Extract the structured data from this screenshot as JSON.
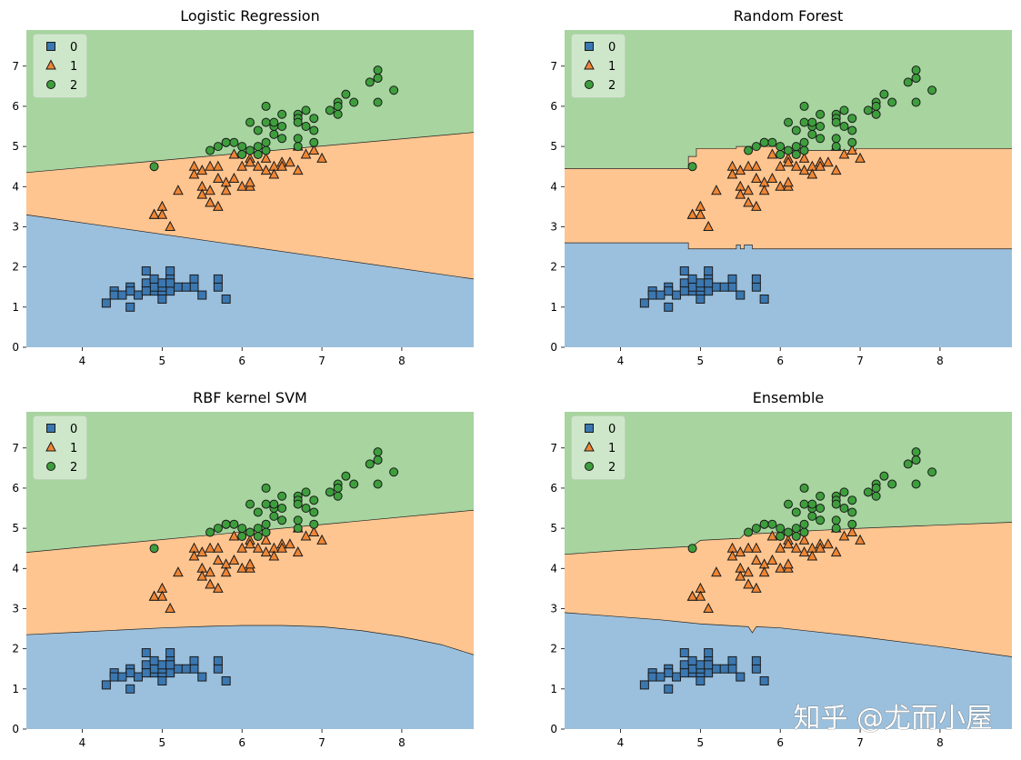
{
  "figure": {
    "colors": {
      "region": [
        "#9bc0dd",
        "#fec590",
        "#a7d49f"
      ],
      "marker": [
        "#3b77b0",
        "#ef8635",
        "#3e9e3d"
      ]
    },
    "classes": [
      "0",
      "1",
      "2"
    ],
    "markers": [
      "square",
      "triangle",
      "circle"
    ],
    "watermark": "知乎 @尤而小屋"
  },
  "chart_data": [
    {
      "type": "scatter",
      "title": "Logistic Regression",
      "xlim": [
        3.3,
        8.9
      ],
      "ylim": [
        0,
        7.9
      ],
      "xticks": [
        "4",
        "5",
        "6",
        "7",
        "8"
      ],
      "yticks": [
        "0",
        "1",
        "2",
        "3",
        "4",
        "5",
        "6",
        "7"
      ],
      "legend": [
        "0",
        "1",
        "2"
      ],
      "legend_position": "top-left",
      "boundaries": [
        {
          "between": "0-1",
          "x": [
            3.3,
            8.9
          ],
          "y": [
            3.3,
            1.7
          ]
        },
        {
          "between": "1-2",
          "x": [
            3.3,
            8.9
          ],
          "y": [
            4.35,
            5.35
          ]
        }
      ]
    },
    {
      "type": "scatter",
      "title": "Random Forest",
      "xlim": [
        3.3,
        8.9
      ],
      "ylim": [
        0,
        7.9
      ],
      "xticks": [
        "4",
        "5",
        "6",
        "7",
        "8"
      ],
      "yticks": [
        "0",
        "1",
        "2",
        "3",
        "4",
        "5",
        "6",
        "7"
      ],
      "legend": [
        "0",
        "1",
        "2"
      ],
      "legend_position": "top-left",
      "boundaries": [
        {
          "between": "0-1",
          "x": [
            3.3,
            4.85,
            4.85,
            5.45,
            5.45,
            5.5,
            5.5,
            5.55,
            5.55,
            5.65,
            5.65,
            5.85,
            5.85,
            8.9
          ],
          "y": [
            2.6,
            2.6,
            2.45,
            2.45,
            2.55,
            2.55,
            2.45,
            2.45,
            2.55,
            2.55,
            2.45,
            2.45,
            2.45,
            2.45
          ]
        },
        {
          "between": "1-2",
          "x": [
            3.3,
            4.85,
            4.85,
            4.95,
            4.95,
            5.45,
            5.45,
            6.05,
            6.05,
            6.95,
            6.95,
            8.9
          ],
          "y": [
            4.45,
            4.45,
            4.75,
            4.75,
            4.95,
            4.95,
            5.0,
            5.0,
            4.9,
            4.9,
            4.95,
            4.95
          ]
        }
      ]
    },
    {
      "type": "scatter",
      "title": "RBF kernel SVM",
      "xlim": [
        3.3,
        8.9
      ],
      "ylim": [
        0,
        7.9
      ],
      "xticks": [
        "4",
        "5",
        "6",
        "7",
        "8"
      ],
      "yticks": [
        "0",
        "1",
        "2",
        "3",
        "4",
        "5",
        "6",
        "7"
      ],
      "legend": [
        "0",
        "1",
        "2"
      ],
      "legend_position": "top-left",
      "boundaries": [
        {
          "between": "0-1",
          "x": [
            3.3,
            4.0,
            5.0,
            5.6,
            6.0,
            6.5,
            7.0,
            7.5,
            8.0,
            8.5,
            8.9
          ],
          "y": [
            2.35,
            2.42,
            2.52,
            2.56,
            2.58,
            2.58,
            2.55,
            2.45,
            2.3,
            2.1,
            1.85
          ]
        },
        {
          "between": "1-2",
          "x": [
            3.3,
            8.9
          ],
          "y": [
            4.4,
            5.45
          ]
        }
      ]
    },
    {
      "type": "scatter",
      "title": "Ensemble",
      "xlim": [
        3.3,
        8.9
      ],
      "ylim": [
        0,
        7.9
      ],
      "xticks": [
        "4",
        "5",
        "6",
        "7",
        "8"
      ],
      "yticks": [
        "0",
        "1",
        "2",
        "3",
        "4",
        "5",
        "6",
        "7"
      ],
      "legend": [
        "0",
        "1",
        "2"
      ],
      "legend_position": "top-left",
      "boundaries": [
        {
          "between": "0-1",
          "x": [
            3.3,
            4.5,
            5.0,
            5.6,
            5.65,
            5.7,
            6.0,
            7.0,
            8.0,
            8.9
          ],
          "y": [
            2.9,
            2.72,
            2.62,
            2.55,
            2.4,
            2.55,
            2.52,
            2.3,
            2.05,
            1.8
          ]
        },
        {
          "between": "1-2",
          "x": [
            3.3,
            4.0,
            4.9,
            5.0,
            5.5,
            5.55,
            6.5,
            7.0,
            8.0,
            8.9
          ],
          "y": [
            4.35,
            4.45,
            4.55,
            4.7,
            4.75,
            4.85,
            4.95,
            5.0,
            5.08,
            5.15
          ]
        }
      ]
    }
  ],
  "points": {
    "class0": [
      [
        5.1,
        1.4
      ],
      [
        4.9,
        1.4
      ],
      [
        4.7,
        1.3
      ],
      [
        4.6,
        1.5
      ],
      [
        5.0,
        1.4
      ],
      [
        5.4,
        1.7
      ],
      [
        4.6,
        1.4
      ],
      [
        5.0,
        1.5
      ],
      [
        4.4,
        1.4
      ],
      [
        4.9,
        1.5
      ],
      [
        5.4,
        1.5
      ],
      [
        4.8,
        1.6
      ],
      [
        4.8,
        1.4
      ],
      [
        4.3,
        1.1
      ],
      [
        5.8,
        1.2
      ],
      [
        5.7,
        1.5
      ],
      [
        5.1,
        1.7
      ],
      [
        5.7,
        1.7
      ],
      [
        4.6,
        1.0
      ],
      [
        5.1,
        1.9
      ],
      [
        4.8,
        1.9
      ],
      [
        5.2,
        1.5
      ],
      [
        4.4,
        1.3
      ],
      [
        5.5,
        1.3
      ],
      [
        4.5,
        1.3
      ],
      [
        5.0,
        1.6
      ],
      [
        5.3,
        1.5
      ],
      [
        5.1,
        1.6
      ],
      [
        5.0,
        1.2
      ],
      [
        4.9,
        1.7
      ]
    ],
    "class1": [
      [
        7.0,
        4.7
      ],
      [
        6.4,
        4.5
      ],
      [
        6.9,
        4.9
      ],
      [
        5.5,
        4.0
      ],
      [
        6.5,
        4.6
      ],
      [
        5.7,
        4.5
      ],
      [
        6.3,
        4.7
      ],
      [
        4.9,
        3.3
      ],
      [
        6.6,
        4.6
      ],
      [
        5.2,
        3.9
      ],
      [
        5.0,
        3.5
      ],
      [
        5.9,
        4.2
      ],
      [
        6.0,
        4.0
      ],
      [
        6.1,
        4.7
      ],
      [
        5.6,
        3.6
      ],
      [
        6.7,
        4.4
      ],
      [
        5.6,
        4.5
      ],
      [
        5.8,
        4.1
      ],
      [
        6.2,
        4.5
      ],
      [
        5.6,
        3.9
      ],
      [
        5.9,
        4.8
      ],
      [
        6.1,
        4.0
      ],
      [
        6.8,
        4.8
      ],
      [
        6.7,
        5.0
      ],
      [
        6.0,
        4.5
      ],
      [
        5.7,
        3.5
      ],
      [
        5.5,
        3.8
      ],
      [
        5.8,
        3.9
      ],
      [
        5.4,
        4.5
      ],
      [
        6.3,
        4.4
      ],
      [
        5.5,
        4.4
      ],
      [
        6.1,
        4.6
      ],
      [
        5.0,
        3.3
      ],
      [
        5.1,
        3.0
      ],
      [
        6.4,
        4.3
      ],
      [
        5.4,
        4.3
      ],
      [
        5.7,
        4.2
      ],
      [
        6.5,
        4.5
      ],
      [
        6.1,
        4.1
      ],
      [
        4.9,
        3.3
      ]
    ],
    "class2": [
      [
        6.3,
        6.0
      ],
      [
        5.8,
        5.1
      ],
      [
        7.1,
        5.9
      ],
      [
        6.5,
        5.8
      ],
      [
        7.6,
        6.6
      ],
      [
        4.9,
        4.5
      ],
      [
        7.3,
        6.3
      ],
      [
        6.7,
        5.8
      ],
      [
        7.2,
        6.1
      ],
      [
        6.4,
        5.3
      ],
      [
        6.8,
        5.5
      ],
      [
        5.7,
        5.0
      ],
      [
        6.4,
        5.5
      ],
      [
        7.7,
        6.7
      ],
      [
        7.7,
        6.9
      ],
      [
        6.0,
        5.0
      ],
      [
        6.9,
        5.7
      ],
      [
        5.6,
        4.9
      ],
      [
        7.7,
        6.7
      ],
      [
        6.3,
        4.9
      ],
      [
        6.7,
        5.7
      ],
      [
        6.2,
        4.8
      ],
      [
        6.1,
        4.9
      ],
      [
        7.2,
        5.8
      ],
      [
        7.4,
        6.1
      ],
      [
        7.9,
        6.4
      ],
      [
        6.3,
        5.6
      ],
      [
        7.7,
        6.1
      ],
      [
        6.0,
        4.8
      ],
      [
        6.9,
        5.4
      ],
      [
        6.9,
        5.1
      ],
      [
        5.8,
        5.1
      ],
      [
        6.8,
        5.9
      ],
      [
        6.7,
        5.2
      ],
      [
        6.5,
        5.2
      ],
      [
        6.2,
        5.4
      ],
      [
        5.9,
        5.1
      ],
      [
        6.3,
        5.1
      ],
      [
        6.4,
        5.6
      ],
      [
        6.1,
        5.6
      ],
      [
        6.5,
        5.5
      ],
      [
        6.7,
        5.6
      ],
      [
        7.2,
        6.0
      ],
      [
        6.2,
        5.0
      ],
      [
        6.7,
        5.0
      ]
    ]
  }
}
